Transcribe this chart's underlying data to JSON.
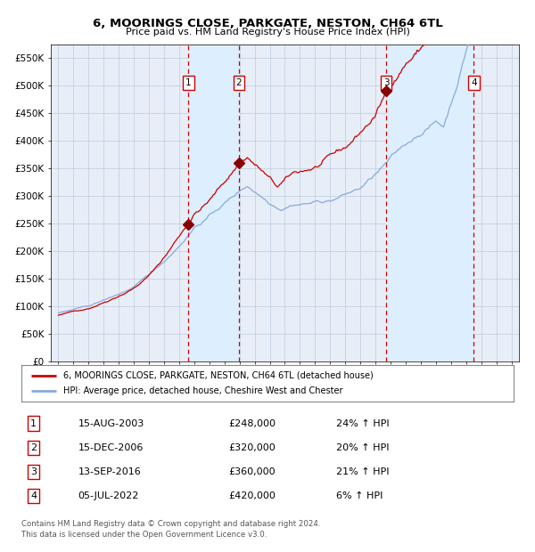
{
  "title": "6, MOORINGS CLOSE, PARKGATE, NESTON, CH64 6TL",
  "subtitle": "Price paid vs. HM Land Registry's House Price Index (HPI)",
  "legend_line1": "6, MOORINGS CLOSE, PARKGATE, NESTON, CH64 6TL (detached house)",
  "legend_line2": "HPI: Average price, detached house, Cheshire West and Chester",
  "footer1": "Contains HM Land Registry data © Crown copyright and database right 2024.",
  "footer2": "This data is licensed under the Open Government Licence v3.0.",
  "transactions": [
    {
      "label": "1",
      "date_str": "15-AUG-2003",
      "price": 248000,
      "hpi_pct": "24%",
      "x_year": 2003.62
    },
    {
      "label": "2",
      "date_str": "15-DEC-2006",
      "price": 320000,
      "hpi_pct": "20%",
      "x_year": 2006.96
    },
    {
      "label": "3",
      "date_str": "13-SEP-2016",
      "price": 360000,
      "hpi_pct": "21%",
      "x_year": 2016.71
    },
    {
      "label": "4",
      "date_str": "05-JUL-2022",
      "price": 420000,
      "hpi_pct": "6%",
      "x_year": 2022.51
    }
  ],
  "hpi_arrow": "↑",
  "ylim": [
    0,
    575000
  ],
  "xlim": [
    1994.5,
    2025.5
  ],
  "yticks": [
    0,
    50000,
    100000,
    150000,
    200000,
    250000,
    300000,
    350000,
    400000,
    450000,
    500000,
    550000
  ],
  "ytick_labels": [
    "£0",
    "£50K",
    "£100K",
    "£150K",
    "£200K",
    "£250K",
    "£300K",
    "£350K",
    "£400K",
    "£450K",
    "£500K",
    "£550K"
  ],
  "xticks": [
    1995,
    1996,
    1997,
    1998,
    1999,
    2000,
    2001,
    2002,
    2003,
    2004,
    2005,
    2006,
    2007,
    2008,
    2009,
    2010,
    2011,
    2012,
    2013,
    2014,
    2015,
    2016,
    2017,
    2018,
    2019,
    2020,
    2021,
    2022,
    2023,
    2024,
    2025
  ],
  "red_line_color": "#cc0000",
  "blue_line_color": "#88aadd",
  "shade_color": "#ddeeff",
  "grid_color": "#bbccdd",
  "vline_color_red": "#cc0000",
  "marker_color": "#880000",
  "box_edge_color": "#cc0000",
  "background_color": "#e8eef8"
}
